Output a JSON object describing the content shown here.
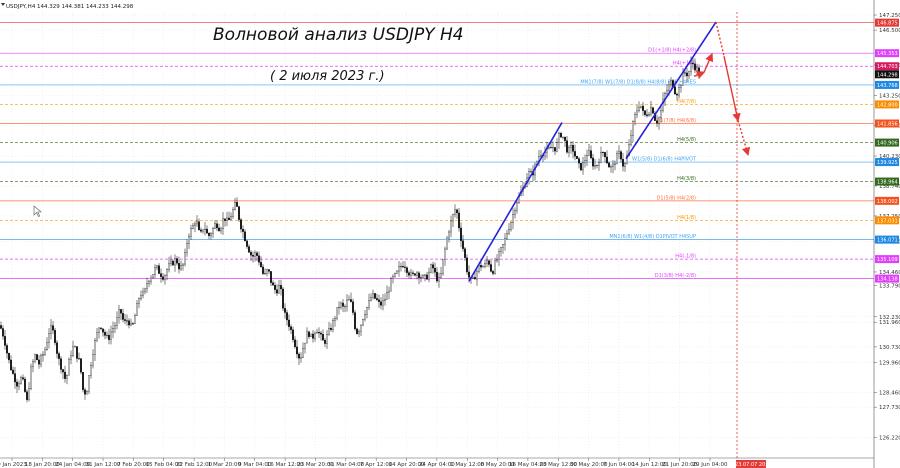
{
  "header": {
    "symbol_info": "USDJPY,H4  144.329 144.381 144.233 144.298"
  },
  "title": "Волновой анализ USDJPY H4",
  "subtitle": "( 2 июля 2023 г.)",
  "colors": {
    "background": "#ffffff",
    "candle": "#000000",
    "wave": "#2222dd",
    "projection": "#e53935",
    "grid": "#dcdcdc"
  },
  "chart_data": {
    "type": "candlestick",
    "symbol": "USDJPY",
    "timeframe": "H4",
    "ylim": [
      125.2,
      147.4
    ],
    "y_ticks": [
      126.22,
      127.73,
      128.46,
      129.96,
      130.73,
      131.96,
      132.23,
      133.79,
      134.46,
      135.98,
      137.25,
      138.74,
      140.23,
      141.74,
      143.25,
      144.76,
      146.5,
      147.25
    ],
    "x_ticks": [
      "9 Jan 2023",
      "18 Jan 20:00",
      "24 Jan 04:00",
      "31 Jan 12:00",
      "7 Feb 20:00",
      "15 Feb 04:00",
      "22 Feb 12:00",
      "1 Mar 20:00",
      "9 Mar 04:00",
      "16 Mar 12:00",
      "23 Mar 20:00",
      "31 Mar 04:00",
      "7 Apr 12:00",
      "14 Apr 20:00",
      "24 Apr 04:00",
      "1 May 12:00",
      "8 May 20:00",
      "16 May 04:00",
      "23 May 12:00",
      "30 May 20:00",
      "7 Jun 04:00",
      "14 Jun 12:00",
      "21 Jun 20:00",
      "29 Jun 04:00"
    ],
    "last_time_label": "2023.07.07 20:00",
    "price_path": [
      [
        0,
        131.8
      ],
      [
        4,
        131.2
      ],
      [
        8,
        130.2
      ],
      [
        12,
        129.5
      ],
      [
        17,
        128.9
      ],
      [
        22,
        129.2
      ],
      [
        27,
        128.0
      ],
      [
        31,
        129.6
      ],
      [
        35,
        130.3
      ],
      [
        39,
        129.9
      ],
      [
        45,
        130.6
      ],
      [
        50,
        131.7
      ],
      [
        54,
        131.4
      ],
      [
        58,
        130.2
      ],
      [
        63,
        129.5
      ],
      [
        66,
        129.0
      ],
      [
        70,
        130.3
      ],
      [
        74,
        130.8
      ],
      [
        77,
        130.3
      ],
      [
        80,
        129.9
      ],
      [
        83,
        128.6
      ],
      [
        86,
        128.4
      ],
      [
        88,
        128.9
      ],
      [
        92,
        130.3
      ],
      [
        96,
        131.2
      ],
      [
        100,
        131.9
      ],
      [
        104,
        131.4
      ],
      [
        108,
        131.1
      ],
      [
        112,
        131.6
      ],
      [
        116,
        131.9
      ],
      [
        120,
        132.6
      ],
      [
        124,
        131.9
      ],
      [
        128,
        132.1
      ],
      [
        132,
        131.6
      ],
      [
        136,
        132.5
      ],
      [
        140,
        133.4
      ],
      [
        144,
        133.3
      ],
      [
        148,
        134.1
      ],
      [
        152,
        134.3
      ],
      [
        156,
        134.7
      ],
      [
        160,
        134.4
      ],
      [
        164,
        134.2
      ],
      [
        168,
        134.7
      ],
      [
        172,
        134.9
      ],
      [
        176,
        135.1
      ],
      [
        180,
        134.6
      ],
      [
        184,
        134.9
      ],
      [
        188,
        136.3
      ],
      [
        192,
        136.6
      ],
      [
        196,
        137.1
      ],
      [
        200,
        136.2
      ],
      [
        204,
        136.8
      ],
      [
        208,
        136.2
      ],
      [
        212,
        136.5
      ],
      [
        216,
        136.9
      ],
      [
        220,
        136.6
      ],
      [
        224,
        137.2
      ],
      [
        228,
        136.9
      ],
      [
        232,
        137.4
      ],
      [
        236,
        137.9
      ],
      [
        240,
        136.9
      ],
      [
        244,
        136.3
      ],
      [
        248,
        135.7
      ],
      [
        252,
        135.2
      ],
      [
        256,
        135.4
      ],
      [
        260,
        134.9
      ],
      [
        264,
        134.2
      ],
      [
        268,
        134.6
      ],
      [
        272,
        133.8
      ],
      [
        276,
        133.5
      ],
      [
        280,
        133.8
      ],
      [
        284,
        132.4
      ],
      [
        288,
        132.0
      ],
      [
        292,
        131.4
      ],
      [
        296,
        130.7
      ],
      [
        300,
        130.1
      ],
      [
        304,
        130.9
      ],
      [
        308,
        131.5
      ],
      [
        312,
        131.1
      ],
      [
        316,
        131.7
      ],
      [
        320,
        131.3
      ],
      [
        324,
        130.9
      ],
      [
        328,
        131.4
      ],
      [
        332,
        131.8
      ],
      [
        336,
        132.4
      ],
      [
        340,
        132.9
      ],
      [
        344,
        132.6
      ],
      [
        348,
        133.1
      ],
      [
        352,
        132.8
      ],
      [
        356,
        131.4
      ],
      [
        360,
        131.7
      ],
      [
        364,
        132.4
      ],
      [
        368,
        132.8
      ],
      [
        372,
        133.3
      ],
      [
        376,
        133.1
      ],
      [
        380,
        132.8
      ],
      [
        384,
        133.0
      ],
      [
        388,
        133.5
      ],
      [
        392,
        134.1
      ],
      [
        396,
        134.3
      ],
      [
        400,
        134.7
      ],
      [
        404,
        134.9
      ],
      [
        408,
        134.5
      ],
      [
        412,
        134.2
      ],
      [
        416,
        134.5
      ],
      [
        420,
        134.3
      ],
      [
        424,
        134.1
      ],
      [
        428,
        134.3
      ],
      [
        432,
        134.8
      ],
      [
        436,
        134.2
      ],
      [
        440,
        134.0
      ],
      [
        444,
        135.3
      ],
      [
        448,
        136.4
      ],
      [
        452,
        137.1
      ],
      [
        456,
        137.7
      ],
      [
        460,
        136.4
      ],
      [
        464,
        135.4
      ],
      [
        468,
        134.3
      ],
      [
        472,
        133.9
      ],
      [
        476,
        134.4
      ],
      [
        480,
        134.8
      ],
      [
        484,
        134.7
      ],
      [
        488,
        135.1
      ],
      [
        492,
        134.4
      ],
      [
        496,
        135.0
      ],
      [
        500,
        135.4
      ],
      [
        504,
        135.9
      ],
      [
        508,
        136.6
      ],
      [
        512,
        137.1
      ],
      [
        516,
        137.9
      ],
      [
        520,
        138.3
      ],
      [
        524,
        138.7
      ],
      [
        528,
        139.4
      ],
      [
        532,
        139.3
      ],
      [
        536,
        139.8
      ],
      [
        540,
        140.4
      ],
      [
        544,
        140.4
      ],
      [
        548,
        140.5
      ],
      [
        552,
        140.7
      ],
      [
        556,
        140.6
      ],
      [
        560,
        141.4
      ],
      [
        564,
        141.1
      ],
      [
        568,
        140.4
      ],
      [
        572,
        140.7
      ],
      [
        576,
        140.1
      ],
      [
        580,
        139.6
      ],
      [
        584,
        139.9
      ],
      [
        588,
        140.5
      ],
      [
        592,
        139.9
      ],
      [
        596,
        139.7
      ],
      [
        600,
        140.2
      ],
      [
        604,
        140.5
      ],
      [
        608,
        139.8
      ],
      [
        612,
        139.6
      ],
      [
        616,
        140.1
      ],
      [
        620,
        140.4
      ],
      [
        624,
        139.6
      ],
      [
        628,
        140.4
      ],
      [
        632,
        141.6
      ],
      [
        636,
        142.4
      ],
      [
        640,
        142.9
      ],
      [
        644,
        142.2
      ],
      [
        648,
        142.4
      ],
      [
        652,
        142.7
      ],
      [
        656,
        141.9
      ],
      [
        660,
        142.2
      ],
      [
        664,
        143.2
      ],
      [
        668,
        143.6
      ],
      [
        672,
        144.0
      ],
      [
        676,
        143.3
      ],
      [
        680,
        143.7
      ],
      [
        684,
        144.4
      ],
      [
        688,
        144.3
      ],
      [
        692,
        144.9
      ],
      [
        696,
        144.6
      ],
      [
        700,
        144.3
      ]
    ],
    "levels": [
      {
        "label": "D1(+1/8) H4(+2/8)",
        "price": 145.35,
        "line_color": "#e040fb",
        "dash": false,
        "tag_color": "#e040fb",
        "tag": "145.353"
      },
      {
        "label": "H4(+1/8)",
        "price": 144.7,
        "line_color": "#e040fb",
        "dash": true,
        "tag_color": "#d81b60",
        "tag": "144.703"
      },
      {
        "label": "MN1(7/8) W1(7/8) D1(8/8) H4(8/8) RES H4RES",
        "price": 143.77,
        "line_color": "#42a5f5",
        "dash": false,
        "tag_color": "#1e88e5",
        "tag": "143.768"
      },
      {
        "label": "H4(7/8)",
        "price": 142.8,
        "line_color": "#ff9800",
        "dash": true,
        "tag_color": "#fb8c00",
        "tag": "142.800"
      },
      {
        "label": "D1(7/8) H4(6/8)",
        "price": 141.85,
        "line_color": "#ff7043",
        "dash": false,
        "tag_color": "#f4511e",
        "tag": "141.856"
      },
      {
        "label": "H4(5/8)",
        "price": 140.9,
        "line_color": "#33691e",
        "dash": true,
        "tag_color": "#33691e",
        "tag": "140.906"
      },
      {
        "label": "W1(5/8) D1(6/8) H4PIVOT",
        "price": 139.93,
        "line_color": "#42a5f5",
        "dash": false,
        "tag_color": "#1e88e5",
        "tag": "139.925"
      },
      {
        "label": "H4(3/8)",
        "price": 138.96,
        "line_color": "#33691e",
        "dash": true,
        "tag_color": "#33691e",
        "tag": "138.964"
      },
      {
        "label": "D1(5/8) H4(2/8)",
        "price": 138.0,
        "line_color": "#ff7043",
        "dash": false,
        "tag_color": "#f4511e",
        "tag": "138.002"
      },
      {
        "label": "H4(1/8)",
        "price": 137.03,
        "line_color": "#ff9800",
        "dash": true,
        "tag_color": "#fb8c00",
        "tag": "137.031"
      },
      {
        "label": "MN1(6/8) W1(4/8) D1PIVOT H4SUP",
        "price": 136.07,
        "line_color": "#42a5f5",
        "dash": false,
        "tag_color": "#1e88e5",
        "tag": "136.071"
      },
      {
        "label": "H4(-1/8)",
        "price": 135.1,
        "line_color": "#e040fb",
        "dash": true,
        "tag_color": "#e040fb",
        "tag": "135.109"
      },
      {
        "label": "D1(3/8) H4(-2/8)",
        "price": 134.13,
        "line_color": "#e040fb",
        "dash": false,
        "tag_color": "#e040fb",
        "tag": "134.138"
      }
    ],
    "current_price": {
      "price": 144.3,
      "tag": "144.298"
    },
    "projection_top": {
      "price": 146.87,
      "tag": "146.875"
    },
    "waves": [
      {
        "from": [
          469,
          134.0
        ],
        "to": [
          562,
          141.9
        ]
      },
      {
        "from": [
          626,
          140.1
        ],
        "to": [
          716,
          146.9
        ]
      }
    ],
    "projection": {
      "solid": [
        [
          716,
          146.9
        ],
        [
          724,
          145.2
        ],
        [
          738,
          142.0
        ]
      ],
      "dotted": [
        [
          738,
          142.0
        ],
        [
          748,
          140.3
        ]
      ]
    },
    "small_arrows": [
      {
        "from": [
          694,
          144.2
        ],
        "to": [
          704,
          144.4
        ]
      },
      {
        "from": [
          704,
          144.4
        ],
        "to": [
          712,
          145.3
        ]
      }
    ]
  }
}
